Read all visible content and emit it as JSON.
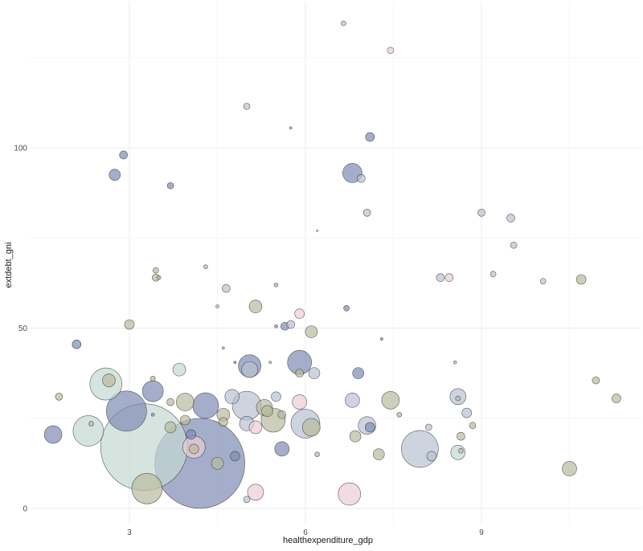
{
  "chart_data": {
    "type": "scatter",
    "subtype": "bubble",
    "title": "",
    "xlabel": "healthexpenditure_gdp",
    "ylabel": "extdebt_gni",
    "xlim": [
      1.5,
      11.4
    ],
    "ylim": [
      -3,
      138
    ],
    "x_ticks": [
      3,
      6,
      9
    ],
    "y_ticks": [
      0,
      50,
      100
    ],
    "x_minor_ticks": [
      4.5,
      7.5,
      10.5
    ],
    "y_minor_ticks": [
      25,
      75,
      125
    ],
    "grid": true,
    "legend": "none",
    "colors": {
      "navy": "#7e8bb3",
      "slate": "#b8c2d2",
      "sage": "#b9ba9c",
      "mint": "#c5d8d3",
      "pink": "#e9cdd6"
    },
    "points": [
      {
        "x": 1.7,
        "y": 20.5,
        "size": 22,
        "color": "navy"
      },
      {
        "x": 1.8,
        "y": 31,
        "size": 9,
        "color": "sage"
      },
      {
        "x": 2.1,
        "y": 45.5,
        "size": 11,
        "color": "navy"
      },
      {
        "x": 2.3,
        "y": 21.5,
        "size": 38,
        "color": "mint"
      },
      {
        "x": 2.35,
        "y": 23.5,
        "size": 6,
        "color": "sage"
      },
      {
        "x": 2.6,
        "y": 34.5,
        "size": 40,
        "color": "mint"
      },
      {
        "x": 2.65,
        "y": 35.5,
        "size": 16,
        "color": "sage"
      },
      {
        "x": 2.75,
        "y": 92.5,
        "size": 14,
        "color": "navy"
      },
      {
        "x": 2.9,
        "y": 98,
        "size": 10,
        "color": "navy"
      },
      {
        "x": 2.95,
        "y": 27,
        "size": 50,
        "color": "navy"
      },
      {
        "x": 3.0,
        "y": 51,
        "size": 12,
        "color": "sage"
      },
      {
        "x": 3.25,
        "y": 17,
        "size": 108,
        "color": "mint"
      },
      {
        "x": 3.3,
        "y": 5.5,
        "size": 38,
        "color": "sage"
      },
      {
        "x": 3.4,
        "y": 36,
        "size": 6,
        "color": "sage"
      },
      {
        "x": 3.4,
        "y": 32.5,
        "size": 26,
        "color": "navy"
      },
      {
        "x": 3.4,
        "y": 26,
        "size": 4,
        "color": "navy"
      },
      {
        "x": 3.45,
        "y": 64,
        "size": 9,
        "color": "sage"
      },
      {
        "x": 3.45,
        "y": 66,
        "size": 7,
        "color": "sage"
      },
      {
        "x": 3.5,
        "y": 64,
        "size": 5,
        "color": "sage"
      },
      {
        "x": 3.7,
        "y": 89.5,
        "size": 8,
        "color": "navy"
      },
      {
        "x": 3.7,
        "y": 29.5,
        "size": 9,
        "color": "sage"
      },
      {
        "x": 3.7,
        "y": 22.5,
        "size": 14,
        "color": "sage"
      },
      {
        "x": 3.85,
        "y": 38.5,
        "size": 16,
        "color": "mint"
      },
      {
        "x": 3.95,
        "y": 29.5,
        "size": 22,
        "color": "sage"
      },
      {
        "x": 3.95,
        "y": 24.5,
        "size": 12,
        "color": "sage"
      },
      {
        "x": 4.05,
        "y": 20.5,
        "size": 12,
        "color": "navy"
      },
      {
        "x": 4.1,
        "y": 17,
        "size": 28,
        "color": "pink"
      },
      {
        "x": 4.1,
        "y": 16.5,
        "size": 12,
        "color": "sage"
      },
      {
        "x": 4.2,
        "y": 12.5,
        "size": 112,
        "color": "navy"
      },
      {
        "x": 4.3,
        "y": 28.5,
        "size": 32,
        "color": "navy"
      },
      {
        "x": 4.3,
        "y": 67,
        "size": 5,
        "color": "sage"
      },
      {
        "x": 4.5,
        "y": 12.5,
        "size": 15,
        "color": "sage"
      },
      {
        "x": 4.5,
        "y": 56,
        "size": 4,
        "color": "sage"
      },
      {
        "x": 4.6,
        "y": 26,
        "size": 16,
        "color": "sage"
      },
      {
        "x": 4.6,
        "y": 24,
        "size": 11,
        "color": "sage"
      },
      {
        "x": 4.6,
        "y": 44.5,
        "size": 3,
        "color": "slate"
      },
      {
        "x": 4.65,
        "y": 61,
        "size": 10,
        "color": "slate"
      },
      {
        "x": 4.75,
        "y": 31,
        "size": 18,
        "color": "slate"
      },
      {
        "x": 4.8,
        "y": 14.5,
        "size": 12,
        "color": "navy"
      },
      {
        "x": 4.8,
        "y": 40.5,
        "size": 3,
        "color": "navy"
      },
      {
        "x": 5.0,
        "y": 111.5,
        "size": 8,
        "color": "slate"
      },
      {
        "x": 5.0,
        "y": 28.5,
        "size": 36,
        "color": "slate"
      },
      {
        "x": 5.0,
        "y": 23.5,
        "size": 18,
        "color": "slate"
      },
      {
        "x": 5.0,
        "y": 2.5,
        "size": 8,
        "color": "slate"
      },
      {
        "x": 5.05,
        "y": 39.5,
        "size": 28,
        "color": "navy"
      },
      {
        "x": 5.05,
        "y": 38.5,
        "size": 20,
        "color": "slate"
      },
      {
        "x": 5.15,
        "y": 56,
        "size": 16,
        "color": "sage"
      },
      {
        "x": 5.15,
        "y": 22.5,
        "size": 16,
        "color": "pink"
      },
      {
        "x": 5.15,
        "y": 4.5,
        "size": 20,
        "color": "pink"
      },
      {
        "x": 5.3,
        "y": 28,
        "size": 20,
        "color": "sage"
      },
      {
        "x": 5.35,
        "y": 27,
        "size": 14,
        "color": "sage"
      },
      {
        "x": 5.4,
        "y": 40.5,
        "size": 3,
        "color": "slate"
      },
      {
        "x": 5.45,
        "y": 24.5,
        "size": 30,
        "color": "sage"
      },
      {
        "x": 5.5,
        "y": 31,
        "size": 12,
        "color": "slate"
      },
      {
        "x": 5.5,
        "y": 62,
        "size": 5,
        "color": "sage"
      },
      {
        "x": 5.5,
        "y": 50.5,
        "size": 4,
        "color": "navy"
      },
      {
        "x": 5.6,
        "y": 26,
        "size": 10,
        "color": "sage"
      },
      {
        "x": 5.6,
        "y": 16.5,
        "size": 18,
        "color": "navy"
      },
      {
        "x": 5.65,
        "y": 50.5,
        "size": 10,
        "color": "navy"
      },
      {
        "x": 5.75,
        "y": 51,
        "size": 10,
        "color": "slate"
      },
      {
        "x": 5.75,
        "y": 105.5,
        "size": 3,
        "color": "sage"
      },
      {
        "x": 5.9,
        "y": 40.5,
        "size": 30,
        "color": "navy"
      },
      {
        "x": 5.9,
        "y": 37.5,
        "size": 10,
        "color": "sage"
      },
      {
        "x": 5.9,
        "y": 29.5,
        "size": 18,
        "color": "pink"
      },
      {
        "x": 5.9,
        "y": 54,
        "size": 12,
        "color": "pink"
      },
      {
        "x": 6.0,
        "y": 23.5,
        "size": 36,
        "color": "slate"
      },
      {
        "x": 6.1,
        "y": 49,
        "size": 15,
        "color": "sage"
      },
      {
        "x": 6.1,
        "y": 22.5,
        "size": 22,
        "color": "sage"
      },
      {
        "x": 6.15,
        "y": 37.5,
        "size": 14,
        "color": "slate"
      },
      {
        "x": 6.2,
        "y": 77,
        "size": 2,
        "color": "sage"
      },
      {
        "x": 6.2,
        "y": 15,
        "size": 6,
        "color": "sage"
      },
      {
        "x": 6.65,
        "y": 134.5,
        "size": 6,
        "color": "slate"
      },
      {
        "x": 6.7,
        "y": 55.5,
        "size": 7,
        "color": "navy"
      },
      {
        "x": 6.75,
        "y": 4,
        "size": 28,
        "color": "pink"
      },
      {
        "x": 6.8,
        "y": 93,
        "size": 24,
        "color": "navy"
      },
      {
        "x": 6.8,
        "y": 30,
        "size": 18,
        "color": "slate"
      },
      {
        "x": 6.85,
        "y": 20,
        "size": 14,
        "color": "sage"
      },
      {
        "x": 6.9,
        "y": 37.5,
        "size": 14,
        "color": "navy"
      },
      {
        "x": 6.95,
        "y": 91.5,
        "size": 10,
        "color": "slate"
      },
      {
        "x": 7.05,
        "y": 82,
        "size": 9,
        "color": "slate"
      },
      {
        "x": 7.05,
        "y": 23,
        "size": 22,
        "color": "slate"
      },
      {
        "x": 7.1,
        "y": 22.5,
        "size": 12,
        "color": "navy"
      },
      {
        "x": 7.1,
        "y": 103,
        "size": 11,
        "color": "navy"
      },
      {
        "x": 7.25,
        "y": 15,
        "size": 14,
        "color": "sage"
      },
      {
        "x": 7.3,
        "y": 47,
        "size": 3,
        "color": "navy"
      },
      {
        "x": 7.45,
        "y": 30,
        "size": 22,
        "color": "sage"
      },
      {
        "x": 7.45,
        "y": 127,
        "size": 8,
        "color": "pink"
      },
      {
        "x": 7.6,
        "y": 26,
        "size": 6,
        "color": "sage"
      },
      {
        "x": 7.95,
        "y": 16.5,
        "size": 46,
        "color": "slate"
      },
      {
        "x": 8.1,
        "y": 22.5,
        "size": 8,
        "color": "slate"
      },
      {
        "x": 8.15,
        "y": 14.5,
        "size": 12,
        "color": "slate"
      },
      {
        "x": 8.3,
        "y": 64,
        "size": 10,
        "color": "slate"
      },
      {
        "x": 8.45,
        "y": 64,
        "size": 10,
        "color": "pink"
      },
      {
        "x": 8.55,
        "y": 40.5,
        "size": 4,
        "color": "sage"
      },
      {
        "x": 8.6,
        "y": 31,
        "size": 20,
        "color": "slate"
      },
      {
        "x": 8.6,
        "y": 30.5,
        "size": 6,
        "color": "sage"
      },
      {
        "x": 8.6,
        "y": 15.5,
        "size": 18,
        "color": "mint"
      },
      {
        "x": 8.65,
        "y": 16,
        "size": 6,
        "color": "sage"
      },
      {
        "x": 8.65,
        "y": 20,
        "size": 10,
        "color": "sage"
      },
      {
        "x": 8.75,
        "y": 26.5,
        "size": 12,
        "color": "slate"
      },
      {
        "x": 8.85,
        "y": 23,
        "size": 8,
        "color": "sage"
      },
      {
        "x": 9.0,
        "y": 82,
        "size": 9,
        "color": "slate"
      },
      {
        "x": 9.2,
        "y": 65,
        "size": 7,
        "color": "slate"
      },
      {
        "x": 9.5,
        "y": 80.5,
        "size": 10,
        "color": "slate"
      },
      {
        "x": 9.55,
        "y": 73,
        "size": 8,
        "color": "slate"
      },
      {
        "x": 10.05,
        "y": 63,
        "size": 7,
        "color": "slate"
      },
      {
        "x": 10.5,
        "y": 11,
        "size": 18,
        "color": "sage"
      },
      {
        "x": 10.7,
        "y": 63.5,
        "size": 12,
        "color": "sage"
      },
      {
        "x": 10.95,
        "y": 35.5,
        "size": 9,
        "color": "sage"
      },
      {
        "x": 11.3,
        "y": 30.5,
        "size": 11,
        "color": "sage"
      }
    ]
  }
}
